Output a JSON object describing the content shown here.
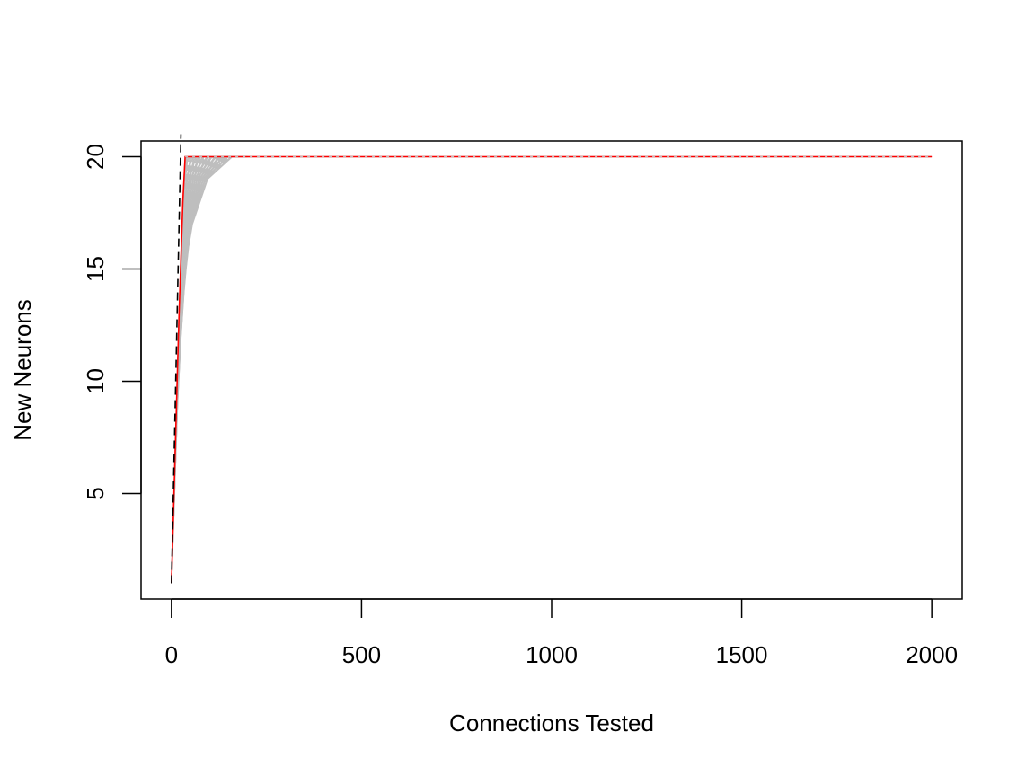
{
  "chart_data": {
    "type": "line",
    "title": "",
    "xlabel": "Connections Tested",
    "ylabel": "New Neurons",
    "xlim": [
      -80,
      2080
    ],
    "ylim": [
      0.3,
      20.7
    ],
    "xticks": [
      0,
      500,
      1000,
      1500,
      2000
    ],
    "yticks": [
      5,
      10,
      15,
      20
    ],
    "grid": false,
    "legend": "none",
    "colors": {
      "axis": "#000000",
      "red_line": "#ff0000",
      "gray_lines": "#bebebe",
      "black_dashed": "#000000"
    },
    "series": [
      {
        "style": "black-dashed",
        "x": [
          0,
          25
        ],
        "y": [
          1,
          21
        ]
      },
      {
        "style": "red-solid",
        "x": [
          0,
          5,
          10,
          15,
          20,
          25,
          30,
          36,
          2000
        ],
        "y": [
          1,
          4,
          7,
          10,
          13,
          15.5,
          18,
          20,
          20
        ]
      },
      {
        "style": "gray-fan",
        "x": [
          0,
          8,
          16,
          25,
          35,
          45,
          55,
          65,
          75,
          85,
          95,
          105,
          115,
          125,
          140,
          160,
          200
        ],
        "y": [
          1,
          5,
          9,
          12,
          14.5,
          16,
          17,
          17.5,
          18,
          18.5,
          19,
          19.2,
          19.4,
          19.6,
          19.8,
          20,
          20
        ]
      }
    ]
  }
}
